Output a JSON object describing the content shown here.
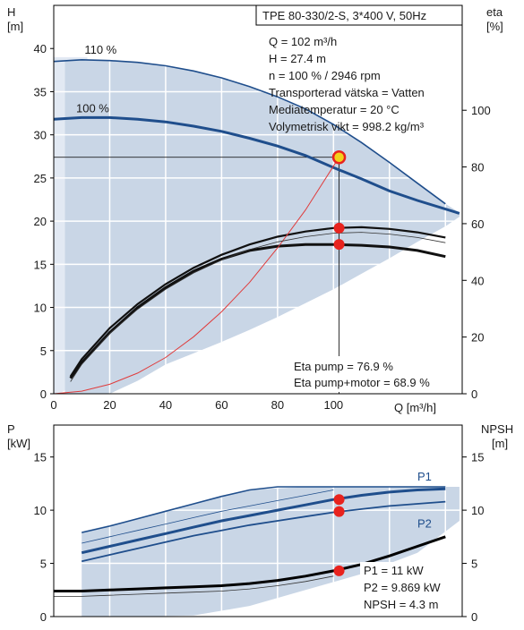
{
  "colors": {
    "background": "#ffffff",
    "grid": "#ffffff",
    "operating_area_fill": "#c9d6e6",
    "operating_area_light": "#e2e9f3",
    "pump_curve": "#1f4e8c",
    "efficiency_curve": "#111111",
    "system_curve": "#e03b3b",
    "duty_point": "#e8231e",
    "duty_point_ring": "#f2d21b",
    "axis": "#000000"
  },
  "header": {
    "model": "TPE 80-330/2-S, 3*400 V, 50Hz"
  },
  "info": {
    "lines": [
      "Q = 102 m³/h",
      "H = 27.4 m",
      "n = 100 % / 2946 rpm",
      "Transporterad vätska = Vatten",
      "Mediatemperatur = 20 °C",
      "Volymetrisk vikt = 998.2 kg/m³"
    ]
  },
  "eta_info": {
    "lines": [
      "Eta pump = 76.9 %",
      "Eta pump+motor = 68.9 %"
    ]
  },
  "power_info": {
    "lines": [
      "P1 = 11 kW",
      "P2 = 9.869 kW",
      "NPSH = 4.3 m"
    ]
  },
  "chart_data": [
    {
      "type": "line",
      "name": "head-chart",
      "ylabel_left": "H",
      "ylabel_left_unit": "[m]",
      "ylabel_right": "eta",
      "ylabel_right_unit": "[%]",
      "xlabel": "Q [m³/h]",
      "xlim": [
        0,
        146
      ],
      "ylim_left": [
        0,
        45
      ],
      "ylim_right": [
        0,
        137
      ],
      "xticks": [
        0,
        20,
        40,
        60,
        80,
        100
      ],
      "yticks_left": [
        0,
        5,
        10,
        15,
        20,
        25,
        30,
        35,
        40
      ],
      "yticks_right": [
        0,
        20,
        40,
        60,
        80,
        100
      ],
      "grid": true,
      "series": [
        {
          "name": "110 %",
          "axis": "left",
          "x": [
            0,
            10,
            20,
            30,
            40,
            50,
            60,
            70,
            80,
            90,
            100,
            110,
            120,
            130,
            140
          ],
          "y": [
            38.5,
            38.7,
            38.6,
            38.4,
            38.0,
            37.4,
            36.6,
            35.6,
            34.4,
            33.0,
            31.2,
            29.1,
            26.8,
            24.4,
            22.0
          ]
        },
        {
          "name": "100 %",
          "axis": "left",
          "x": [
            0,
            10,
            20,
            30,
            40,
            50,
            60,
            70,
            80,
            90,
            100,
            110,
            120,
            130,
            145
          ],
          "y": [
            31.8,
            32.0,
            32.0,
            31.8,
            31.5,
            31.0,
            30.4,
            29.6,
            28.7,
            27.6,
            26.2,
            24.9,
            23.5,
            22.4,
            20.9
          ]
        },
        {
          "name": "eta-outer",
          "axis": "left",
          "x": [
            6,
            10,
            20,
            30,
            40,
            50,
            60,
            70,
            80,
            90,
            100,
            110,
            120,
            130,
            140
          ],
          "y": [
            2.0,
            4.0,
            7.6,
            10.4,
            12.7,
            14.6,
            16.1,
            17.3,
            18.2,
            18.8,
            19.2,
            19.3,
            19.1,
            18.7,
            18.1
          ]
        },
        {
          "name": "eta-inner",
          "axis": "left",
          "x": [
            6,
            10,
            20,
            30,
            40,
            50,
            60,
            70,
            80,
            90,
            100,
            110,
            120,
            130,
            140
          ],
          "y": [
            1.8,
            3.6,
            7.1,
            10.0,
            12.3,
            14.2,
            15.6,
            16.6,
            17.1,
            17.3,
            17.3,
            17.2,
            17.0,
            16.6,
            15.9
          ]
        },
        {
          "name": "system-curve",
          "axis": "left",
          "x": [
            0,
            10,
            20,
            30,
            40,
            50,
            60,
            70,
            80,
            90,
            102
          ],
          "y": [
            0,
            0.3,
            1.1,
            2.4,
            4.2,
            6.6,
            9.5,
            12.9,
            16.9,
            21.3,
            27.4
          ]
        }
      ],
      "operating_area": {
        "x": [
          4,
          10,
          20,
          30,
          40,
          50,
          60,
          70,
          80,
          90,
          100,
          110,
          120,
          130,
          140,
          145,
          145,
          140,
          130,
          120,
          110,
          100,
          90,
          80,
          70,
          60,
          50,
          40,
          30,
          20,
          10,
          4
        ],
        "y": [
          38.6,
          38.7,
          38.6,
          38.4,
          38.0,
          37.4,
          36.6,
          35.6,
          34.4,
          33.0,
          31.2,
          29.1,
          26.8,
          24.4,
          22.0,
          21.0,
          20.5,
          19.4,
          17.6,
          15.7,
          13.9,
          12.1,
          10.5,
          8.9,
          7.4,
          6.0,
          4.7,
          3.4,
          1.5,
          0.0,
          0.0,
          0.0
        ]
      },
      "duty_point": {
        "x": 102,
        "y": 27.4
      },
      "eta_points": [
        {
          "x": 102,
          "y": 19.2
        },
        {
          "x": 102,
          "y": 17.3
        }
      ]
    },
    {
      "type": "line",
      "name": "power-chart",
      "ylabel_left": "P",
      "ylabel_left_unit": "[kW]",
      "ylabel_right": "NPSH",
      "ylabel_right_unit": "[m]",
      "xlim": [
        0,
        146
      ],
      "ylim_left": [
        0,
        18
      ],
      "ylim_right": [
        0,
        18
      ],
      "yticks_left": [
        0,
        5,
        10,
        15
      ],
      "yticks_right": [
        0,
        5,
        10,
        15
      ],
      "grid": true,
      "series": [
        {
          "name": "P1",
          "axis": "left",
          "x": [
            10,
            20,
            30,
            40,
            50,
            60,
            70,
            80,
            90,
            100,
            110,
            120,
            130,
            140
          ],
          "y": [
            6.0,
            6.6,
            7.2,
            7.8,
            8.4,
            9.0,
            9.5,
            10.0,
            10.5,
            11.0,
            11.4,
            11.7,
            11.9,
            12.0
          ]
        },
        {
          "name": "P2",
          "axis": "left",
          "x": [
            10,
            20,
            30,
            40,
            50,
            60,
            70,
            80,
            90,
            100,
            110,
            120,
            130,
            140
          ],
          "y": [
            5.2,
            5.8,
            6.4,
            7.0,
            7.6,
            8.1,
            8.6,
            9.0,
            9.4,
            9.8,
            10.1,
            10.4,
            10.6,
            10.8
          ]
        },
        {
          "name": "P1-upper",
          "axis": "left",
          "x": [
            10,
            20,
            30,
            40,
            50,
            60,
            70,
            80,
            90,
            100,
            110,
            120,
            130,
            140
          ],
          "y": [
            7.9,
            8.5,
            9.2,
            9.9,
            10.6,
            11.3,
            11.9,
            12.2,
            12.2,
            12.2,
            12.2,
            12.2,
            12.2,
            12.2
          ]
        },
        {
          "name": "NPSH",
          "axis": "right",
          "x": [
            0,
            10,
            20,
            30,
            40,
            50,
            60,
            70,
            80,
            90,
            100,
            110,
            120,
            130,
            140
          ],
          "y": [
            2.4,
            2.4,
            2.5,
            2.6,
            2.7,
            2.8,
            2.9,
            3.1,
            3.4,
            3.8,
            4.3,
            4.9,
            5.7,
            6.6,
            7.5
          ]
        }
      ],
      "operating_area": {
        "x": [
          10,
          30,
          50,
          70,
          90,
          100,
          120,
          140,
          145,
          145,
          130,
          110,
          90,
          70,
          50,
          30,
          10
        ],
        "y": [
          8.0,
          9.2,
          10.6,
          11.9,
          12.2,
          12.2,
          12.2,
          12.2,
          12.2,
          9.0,
          6.0,
          4.0,
          2.5,
          1.0,
          0.1,
          0.0,
          0.0
        ]
      },
      "points": [
        {
          "x": 102,
          "y": 11.0
        },
        {
          "x": 102,
          "y": 9.87
        },
        {
          "x": 102,
          "y": 4.3
        }
      ]
    }
  ]
}
